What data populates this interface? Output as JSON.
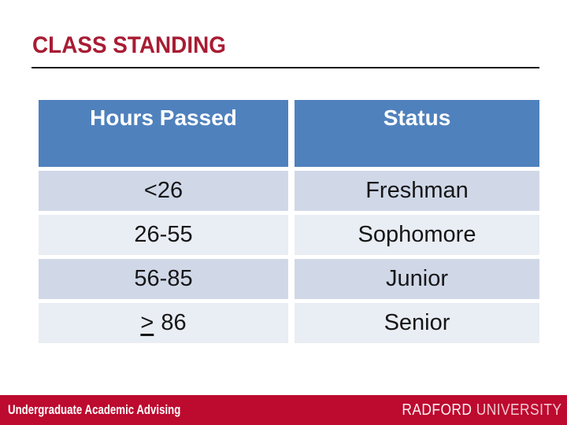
{
  "slide": {
    "title": "CLASS STANDING",
    "colors": {
      "title_red": "#a81c33",
      "rule_dark": "#1b1b1b",
      "header_blue": "#4f81bd",
      "row_dark": "#d0d8e8",
      "row_light": "#e9edf4",
      "footer_red": "#bd0a2f",
      "cell_text": "#161616",
      "header_text": "#ffffff"
    },
    "footer": {
      "department": "Undergraduate Academic Advising",
      "brand_word1": "RADFORD",
      "brand_word2": "UNIVERSITY"
    }
  },
  "table": {
    "columns": [
      "Hours Passed",
      "Status"
    ],
    "rows": [
      {
        "hours": "<26",
        "status": "Freshman"
      },
      {
        "hours": "26-55",
        "status": "Sophomore"
      },
      {
        "hours": "56-85",
        "status": "Junior"
      },
      {
        "hours_prefix": ">",
        "hours_value": "86",
        "status": "Senior"
      }
    ]
  }
}
